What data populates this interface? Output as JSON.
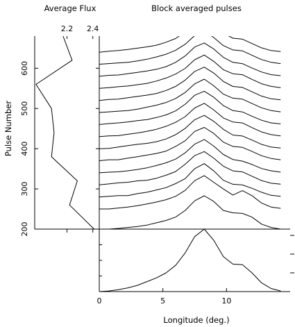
{
  "chart_data": [
    {
      "type": "line",
      "title": "Average Flux",
      "ylabel": "Pulse Number",
      "xlim": [
        1.95,
        2.45
      ],
      "ylim": [
        200,
        680
      ],
      "xticks": [
        2.2,
        2.4
      ],
      "yticks": [
        200,
        300,
        400,
        500,
        600
      ],
      "points": [
        {
          "flux": 2.41,
          "pulse": 200
        },
        {
          "flux": 2.22,
          "pulse": 260
        },
        {
          "flux": 2.28,
          "pulse": 320
        },
        {
          "flux": 2.08,
          "pulse": 380
        },
        {
          "flux": 2.1,
          "pulse": 440
        },
        {
          "flux": 2.08,
          "pulse": 500
        },
        {
          "flux": 1.96,
          "pulse": 560
        },
        {
          "flux": 2.24,
          "pulse": 620
        },
        {
          "flux": 2.17,
          "pulse": 680
        }
      ]
    },
    {
      "type": "line",
      "title": "Block averaged pulses",
      "ylim": [
        200,
        680
      ],
      "series": [
        {
          "base": 200,
          "values": [
            0.0,
            0.0,
            0.02,
            0.05,
            0.08,
            0.12,
            0.19,
            0.26,
            0.36,
            0.56,
            0.85,
            1.0,
            0.83,
            0.56,
            0.49,
            0.47,
            0.36,
            0.15,
            0.05,
            0.0
          ]
        },
        {
          "base": 250,
          "values": [
            0.0,
            0.0,
            0.03,
            0.06,
            0.1,
            0.15,
            0.21,
            0.28,
            0.38,
            0.56,
            0.85,
            1.0,
            0.8,
            0.6,
            0.42,
            0.55,
            0.4,
            0.18,
            0.06,
            0.02
          ]
        },
        {
          "base": 280,
          "values": [
            0.0,
            0.02,
            0.04,
            0.04,
            0.1,
            0.14,
            0.21,
            0.28,
            0.4,
            0.55,
            0.85,
            1.0,
            0.78,
            0.5,
            0.38,
            0.36,
            0.26,
            0.14,
            0.05,
            0.02
          ]
        },
        {
          "base": 310,
          "values": [
            0.0,
            0.03,
            0.06,
            0.08,
            0.12,
            0.14,
            0.2,
            0.29,
            0.4,
            0.62,
            0.88,
            1.0,
            0.8,
            0.56,
            0.42,
            0.39,
            0.26,
            0.13,
            0.05,
            0.02
          ]
        },
        {
          "base": 340,
          "values": [
            0.0,
            0.02,
            0.03,
            0.06,
            0.1,
            0.15,
            0.22,
            0.3,
            0.41,
            0.6,
            0.86,
            1.0,
            0.8,
            0.55,
            0.4,
            0.35,
            0.25,
            0.13,
            0.06,
            0.02
          ]
        },
        {
          "base": 370,
          "values": [
            0.0,
            0.03,
            0.03,
            0.08,
            0.12,
            0.17,
            0.22,
            0.29,
            0.43,
            0.6,
            0.88,
            1.0,
            0.82,
            0.56,
            0.43,
            0.4,
            0.28,
            0.15,
            0.07,
            0.03
          ]
        },
        {
          "base": 400,
          "values": [
            0.0,
            0.01,
            0.05,
            0.09,
            0.13,
            0.16,
            0.21,
            0.29,
            0.42,
            0.61,
            0.87,
            1.0,
            0.82,
            0.58,
            0.41,
            0.38,
            0.26,
            0.13,
            0.05,
            0.02
          ]
        },
        {
          "base": 430,
          "values": [
            0.0,
            0.02,
            0.03,
            0.07,
            0.11,
            0.16,
            0.22,
            0.31,
            0.43,
            0.6,
            0.86,
            1.0,
            0.8,
            0.56,
            0.44,
            0.41,
            0.27,
            0.14,
            0.06,
            0.02
          ]
        },
        {
          "base": 460,
          "values": [
            0.0,
            0.03,
            0.05,
            0.08,
            0.12,
            0.15,
            0.21,
            0.29,
            0.41,
            0.61,
            0.88,
            1.0,
            0.82,
            0.57,
            0.42,
            0.38,
            0.25,
            0.13,
            0.05,
            0.02
          ]
        },
        {
          "base": 490,
          "values": [
            0.0,
            0.02,
            0.04,
            0.06,
            0.1,
            0.16,
            0.22,
            0.3,
            0.42,
            0.6,
            0.86,
            1.0,
            0.8,
            0.55,
            0.43,
            0.4,
            0.27,
            0.14,
            0.06,
            0.02
          ]
        },
        {
          "base": 520,
          "values": [
            0.0,
            0.03,
            0.04,
            0.08,
            0.12,
            0.16,
            0.21,
            0.3,
            0.42,
            0.61,
            0.87,
            1.0,
            0.82,
            0.57,
            0.42,
            0.39,
            0.26,
            0.13,
            0.05,
            0.02
          ]
        },
        {
          "base": 550,
          "values": [
            0.0,
            0.02,
            0.05,
            0.07,
            0.11,
            0.15,
            0.22,
            0.31,
            0.43,
            0.6,
            0.86,
            1.0,
            0.81,
            0.56,
            0.44,
            0.41,
            0.27,
            0.14,
            0.06,
            0.02
          ]
        },
        {
          "base": 580,
          "values": [
            0.0,
            0.03,
            0.04,
            0.08,
            0.12,
            0.16,
            0.21,
            0.29,
            0.42,
            0.61,
            0.88,
            1.0,
            0.82,
            0.57,
            0.42,
            0.38,
            0.25,
            0.13,
            0.05,
            0.02
          ]
        },
        {
          "base": 610,
          "values": [
            0.0,
            0.02,
            0.04,
            0.06,
            0.1,
            0.15,
            0.22,
            0.3,
            0.42,
            0.6,
            0.86,
            1.0,
            0.8,
            0.56,
            0.43,
            0.4,
            0.27,
            0.14,
            0.06,
            0.02
          ]
        },
        {
          "base": 640,
          "values": [
            0.0,
            0.03,
            0.05,
            0.08,
            0.12,
            0.16,
            0.21,
            0.3,
            0.41,
            0.61,
            0.87,
            1.0,
            0.82,
            0.57,
            0.42,
            0.39,
            0.26,
            0.13,
            0.05,
            0.02
          ]
        }
      ]
    },
    {
      "type": "line",
      "xlabel": "Longitude (deg.)",
      "xlim": [
        0,
        15
      ],
      "xticks": [
        0,
        5,
        10
      ],
      "ylim": [
        0,
        1
      ],
      "x": [
        0.0,
        0.75,
        1.5,
        2.25,
        3.0,
        3.75,
        4.5,
        5.25,
        6.0,
        6.75,
        7.5,
        8.25,
        9.0,
        9.75,
        10.5,
        11.25,
        12.0,
        12.75,
        13.5,
        14.25
      ],
      "values": [
        0.0,
        0.01,
        0.03,
        0.06,
        0.1,
        0.16,
        0.22,
        0.3,
        0.42,
        0.62,
        0.88,
        1.0,
        0.82,
        0.56,
        0.44,
        0.43,
        0.3,
        0.14,
        0.05,
        0.01
      ]
    }
  ]
}
